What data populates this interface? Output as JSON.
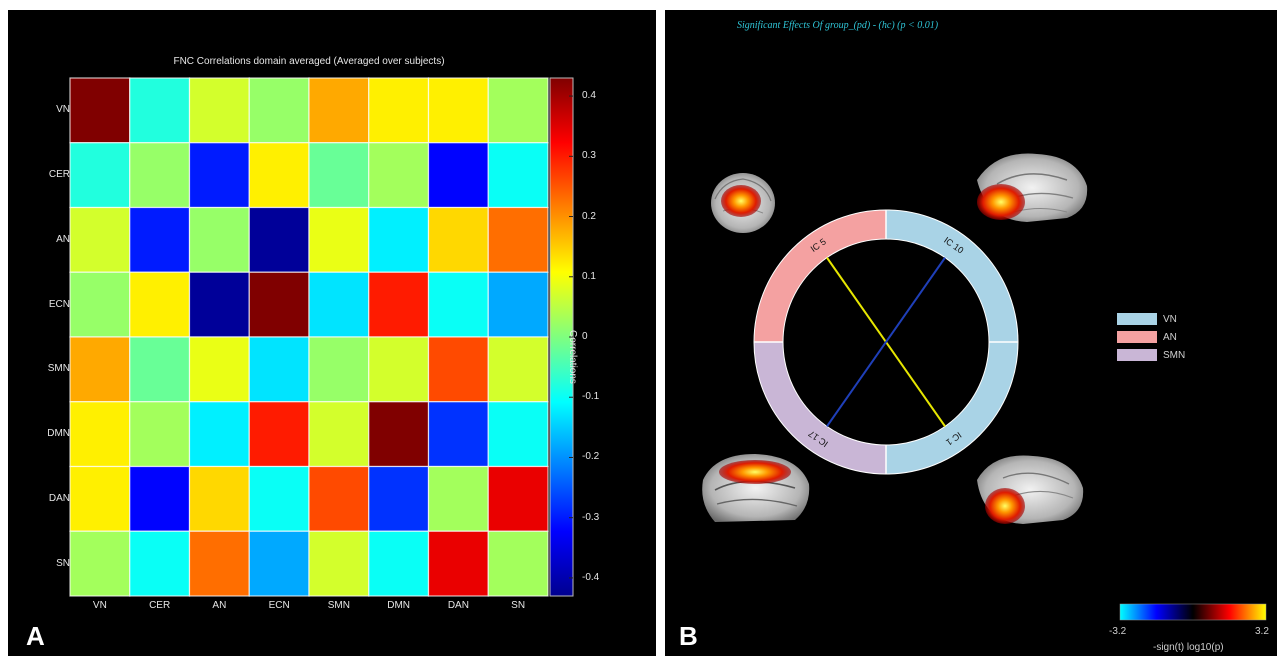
{
  "panel_a": {
    "letter": "A",
    "chart_data": {
      "type": "heatmap",
      "title": "FNC Correlations domain averaged (Averaged over subjects)",
      "row_labels": [
        "VN",
        "CER",
        "AN",
        "ECN",
        "SMN",
        "DMN",
        "DAN",
        "SN"
      ],
      "col_labels": [
        "VN",
        "CER",
        "AN",
        "ECN",
        "SMN",
        "DMN",
        "DAN",
        "SN"
      ],
      "values": [
        [
          0.43,
          -0.08,
          0.07,
          0.02,
          0.18,
          0.12,
          0.12,
          0.03
        ],
        [
          -0.08,
          0.02,
          -0.3,
          0.12,
          -0.02,
          0.03,
          -0.32,
          -0.1
        ],
        [
          0.07,
          -0.3,
          0.02,
          -0.42,
          0.09,
          -0.12,
          0.14,
          0.23
        ],
        [
          0.02,
          0.12,
          -0.42,
          0.43,
          -0.13,
          0.3,
          -0.1,
          -0.18
        ],
        [
          0.18,
          -0.02,
          0.09,
          -0.13,
          0.02,
          0.07,
          0.26,
          0.07
        ],
        [
          0.12,
          0.03,
          -0.12,
          0.3,
          0.07,
          0.43,
          -0.28,
          -0.1
        ],
        [
          0.12,
          -0.32,
          0.14,
          -0.1,
          0.26,
          -0.28,
          0.03,
          0.34
        ],
        [
          0.03,
          -0.1,
          0.23,
          -0.18,
          0.07,
          -0.1,
          0.34,
          0.03
        ]
      ],
      "colorbar": {
        "label": "Correlations",
        "range": [
          -0.43,
          0.43
        ],
        "ticks": [
          "0.4",
          "0.3",
          "0.2",
          "0.1",
          "0",
          "-0.1",
          "-0.2",
          "-0.3",
          "-0.4"
        ],
        "tick_values": [
          0.4,
          0.3,
          0.2,
          0.1,
          0,
          -0.1,
          -0.2,
          -0.3,
          -0.4
        ],
        "colormap": "jet"
      },
      "grid": true
    }
  },
  "panel_b": {
    "letter": "B",
    "title": "Significant Effects Of group_(pd) - (hc) (p < 0.01)",
    "chart_data": {
      "type": "connectogram",
      "domains": [
        {
          "name": "VN",
          "color": "#a9d3e6"
        },
        {
          "name": "AN",
          "color": "#f4a1a1"
        },
        {
          "name": "SMN",
          "color": "#c9b6d6"
        }
      ],
      "nodes": [
        {
          "label": "IC 10",
          "domain": "VN"
        },
        {
          "label": "IC 1",
          "domain": "VN"
        },
        {
          "label": "IC 5",
          "domain": "AN"
        },
        {
          "label": "IC 17",
          "domain": "SMN"
        }
      ],
      "edges": [
        {
          "from": "IC 5",
          "to": "IC 1",
          "color": "#e6e600"
        },
        {
          "from": "IC 17",
          "to": "IC 10",
          "color": "#1f3fb8"
        }
      ],
      "colorbar": {
        "min_label": "-3.2",
        "max_label": "3.2",
        "title": "-sign(t) log10(p)",
        "range": [
          -3.2,
          3.2
        ]
      }
    }
  }
}
